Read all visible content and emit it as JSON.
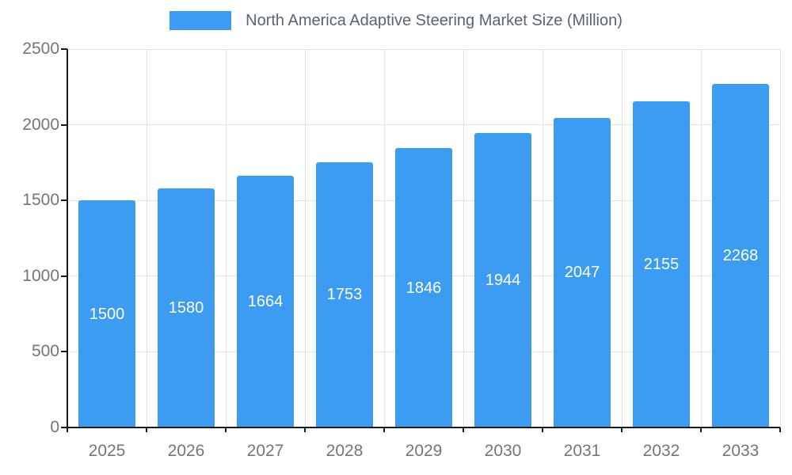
{
  "chart_data": {
    "type": "bar",
    "title": "North America Adaptive Steering Market Size (Million)",
    "categories": [
      "2025",
      "2026",
      "2027",
      "2028",
      "2029",
      "2030",
      "2031",
      "2032",
      "2033"
    ],
    "values": [
      1500,
      1580,
      1664,
      1753,
      1846,
      1944,
      2047,
      2155,
      2268
    ],
    "xlabel": "",
    "ylabel": "",
    "ylim": [
      0,
      2500
    ],
    "yticks": [
      0,
      500,
      1000,
      1500,
      2000,
      2500
    ],
    "grid": true,
    "legend_position": "top",
    "bar_color": "#3b9cf2",
    "value_label_color": "#ffffff",
    "axis_label_color": "#757575",
    "legend_text_color": "#566573",
    "grid_color": "#e2e2e2",
    "axis_line_color": "#1a1a1a"
  },
  "legend": {
    "label": "North America Adaptive Steering Market Size (Million)"
  }
}
